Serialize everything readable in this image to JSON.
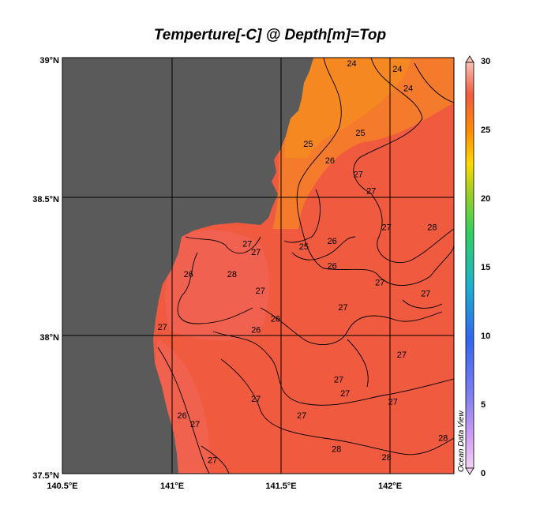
{
  "title": "Temperture[-C] @ Depth[m]=Top",
  "map": {
    "lat_ticks": [
      "39°N",
      "38.5°N",
      "38°N",
      "37.5°N"
    ],
    "lon_ticks": [
      "140.5°E",
      "141°E",
      "141.5°E",
      "142°E"
    ],
    "lat_range": [
      37.5,
      39.0
    ],
    "lon_range": [
      140.5,
      142.3
    ],
    "land_color": "#5a5a5a",
    "grid_lines": true
  },
  "colorbar": {
    "ticks": [
      "30",
      "25",
      "20",
      "15",
      "10",
      "5",
      "0"
    ],
    "range": [
      0,
      30
    ]
  },
  "contour_labels": [
    {
      "text": "24",
      "lon": 141.83,
      "lat": 38.98
    },
    {
      "text": "24",
      "lon": 142.04,
      "lat": 38.96
    },
    {
      "text": "24",
      "lon": 142.09,
      "lat": 38.89
    },
    {
      "text": "25",
      "lon": 141.87,
      "lat": 38.73
    },
    {
      "text": "25",
      "lon": 141.63,
      "lat": 38.69
    },
    {
      "text": "26",
      "lon": 141.73,
      "lat": 38.63
    },
    {
      "text": "27",
      "lon": 141.86,
      "lat": 38.58
    },
    {
      "text": "27",
      "lon": 141.92,
      "lat": 38.52
    },
    {
      "text": "27",
      "lon": 141.99,
      "lat": 38.39
    },
    {
      "text": "28",
      "lon": 142.2,
      "lat": 38.39
    },
    {
      "text": "27",
      "lon": 141.35,
      "lat": 38.33
    },
    {
      "text": "25",
      "lon": 141.61,
      "lat": 38.32
    },
    {
      "text": "26",
      "lon": 141.74,
      "lat": 38.34
    },
    {
      "text": "26",
      "lon": 141.74,
      "lat": 38.25
    },
    {
      "text": "27",
      "lon": 141.39,
      "lat": 38.3
    },
    {
      "text": "28",
      "lon": 141.28,
      "lat": 38.22
    },
    {
      "text": "26",
      "lon": 141.08,
      "lat": 38.22
    },
    {
      "text": "27",
      "lon": 141.96,
      "lat": 38.19
    },
    {
      "text": "27",
      "lon": 141.41,
      "lat": 38.16
    },
    {
      "text": "27",
      "lon": 141.79,
      "lat": 38.1
    },
    {
      "text": "27",
      "lon": 142.17,
      "lat": 38.15
    },
    {
      "text": "26",
      "lon": 141.48,
      "lat": 38.06
    },
    {
      "text": "26",
      "lon": 141.39,
      "lat": 38.02
    },
    {
      "text": "27",
      "lon": 140.96,
      "lat": 38.03
    },
    {
      "text": "27",
      "lon": 142.06,
      "lat": 37.93
    },
    {
      "text": "27",
      "lon": 141.77,
      "lat": 37.84
    },
    {
      "text": "27",
      "lon": 141.8,
      "lat": 37.79
    },
    {
      "text": "27",
      "lon": 142.02,
      "lat": 37.76
    },
    {
      "text": "27",
      "lon": 141.39,
      "lat": 37.77
    },
    {
      "text": "27",
      "lon": 141.6,
      "lat": 37.71
    },
    {
      "text": "26",
      "lon": 141.05,
      "lat": 37.71
    },
    {
      "text": "27",
      "lon": 141.11,
      "lat": 37.68
    },
    {
      "text": "28",
      "lon": 141.76,
      "lat": 37.59
    },
    {
      "text": "28",
      "lon": 141.99,
      "lat": 37.56
    },
    {
      "text": "28",
      "lon": 142.25,
      "lat": 37.63
    },
    {
      "text": "27",
      "lon": 141.19,
      "lat": 37.55
    }
  ],
  "watermark": "Ocean Data View"
}
